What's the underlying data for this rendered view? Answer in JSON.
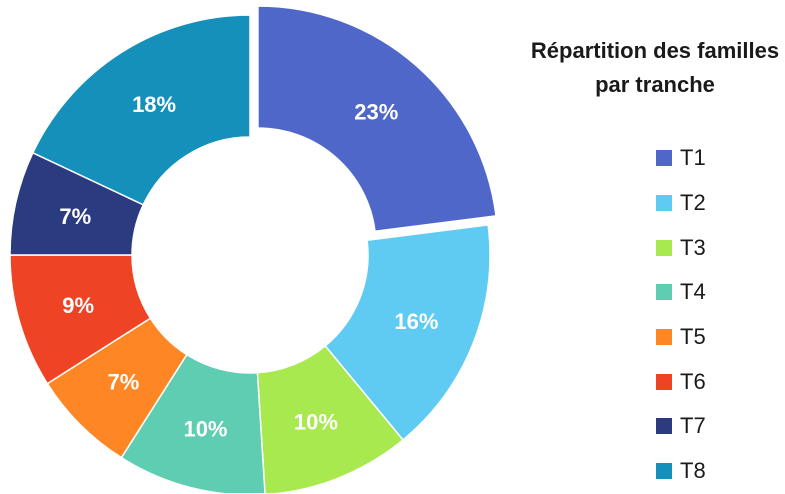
{
  "chart_data": {
    "type": "donut",
    "title": "Répartition des familles par tranche",
    "categories": [
      "T1",
      "T2",
      "T3",
      "T4",
      "T5",
      "T6",
      "T7",
      "T8"
    ],
    "values": [
      23,
      16,
      10,
      10,
      7,
      9,
      7,
      18
    ],
    "labels": [
      "23%",
      "16%",
      "10%",
      "10%",
      "7%",
      "9%",
      "7%",
      "18%"
    ],
    "colors": [
      "#4F67C9",
      "#5FCBF2",
      "#A7E94F",
      "#5ECDB2",
      "#FF8624",
      "#EE4325",
      "#2A3C7F",
      "#1590BA"
    ],
    "exploded": "T1",
    "legend_position": "right"
  }
}
